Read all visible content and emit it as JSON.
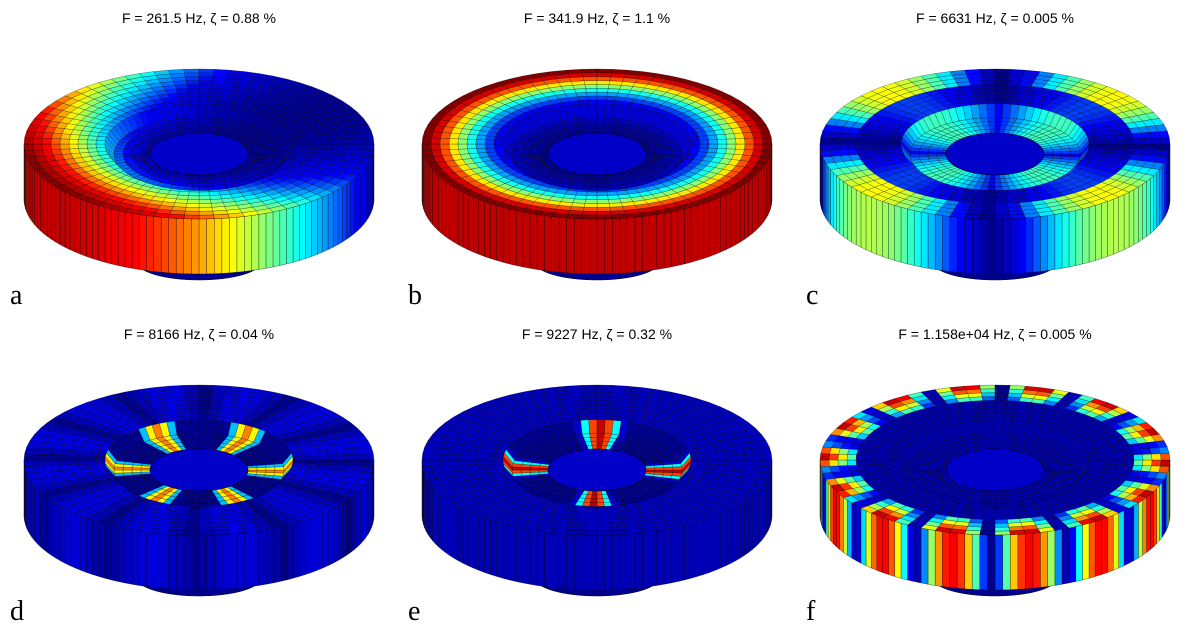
{
  "panels": [
    {
      "letter": "a",
      "caption": "F = 261.5 Hz, ζ = 0.88 %",
      "mode": "tilt"
    },
    {
      "letter": "b",
      "caption": "F = 341.9 Hz, ζ = 1.1 %",
      "mode": "bounce"
    },
    {
      "letter": "c",
      "caption": "F = 6631 Hz, ζ = 0.005 %",
      "mode": "inner-2"
    },
    {
      "letter": "d",
      "caption": "F = 8166 Hz, ζ = 0.04 %",
      "mode": "inner-6"
    },
    {
      "letter": "e",
      "caption": "F = 9227 Hz, ζ = 0.32 %",
      "mode": "inner-8"
    },
    {
      "letter": "f",
      "caption": "F = 1.158e+04 Hz, ζ = 0.005 %",
      "mode": "rim-14"
    }
  ],
  "colormap": [
    "#00008f",
    "#0000ff",
    "#00ffff",
    "#ffff00",
    "#ff0000",
    "#800000"
  ]
}
